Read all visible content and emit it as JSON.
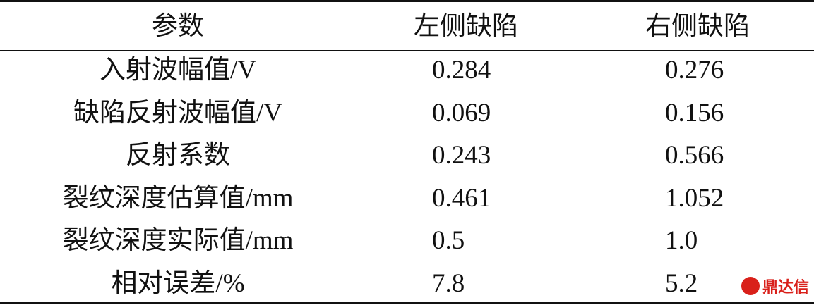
{
  "table": {
    "header": [
      "参数",
      "左侧缺陷",
      "右侧缺陷"
    ],
    "rows": [
      [
        "入射波幅值/V",
        "0.284",
        "0.276"
      ],
      [
        "缺陷反射波幅值/V",
        "0.069",
        "0.156"
      ],
      [
        "反射系数",
        "0.243",
        "0.566"
      ],
      [
        "裂纹深度估算值/mm",
        "0.461",
        "1.052"
      ],
      [
        "裂纹深度实际值/mm",
        "0.5",
        "1.0"
      ],
      [
        "相对误差/%",
        "7.8",
        "5.2"
      ]
    ]
  },
  "watermark": "鼎达信"
}
